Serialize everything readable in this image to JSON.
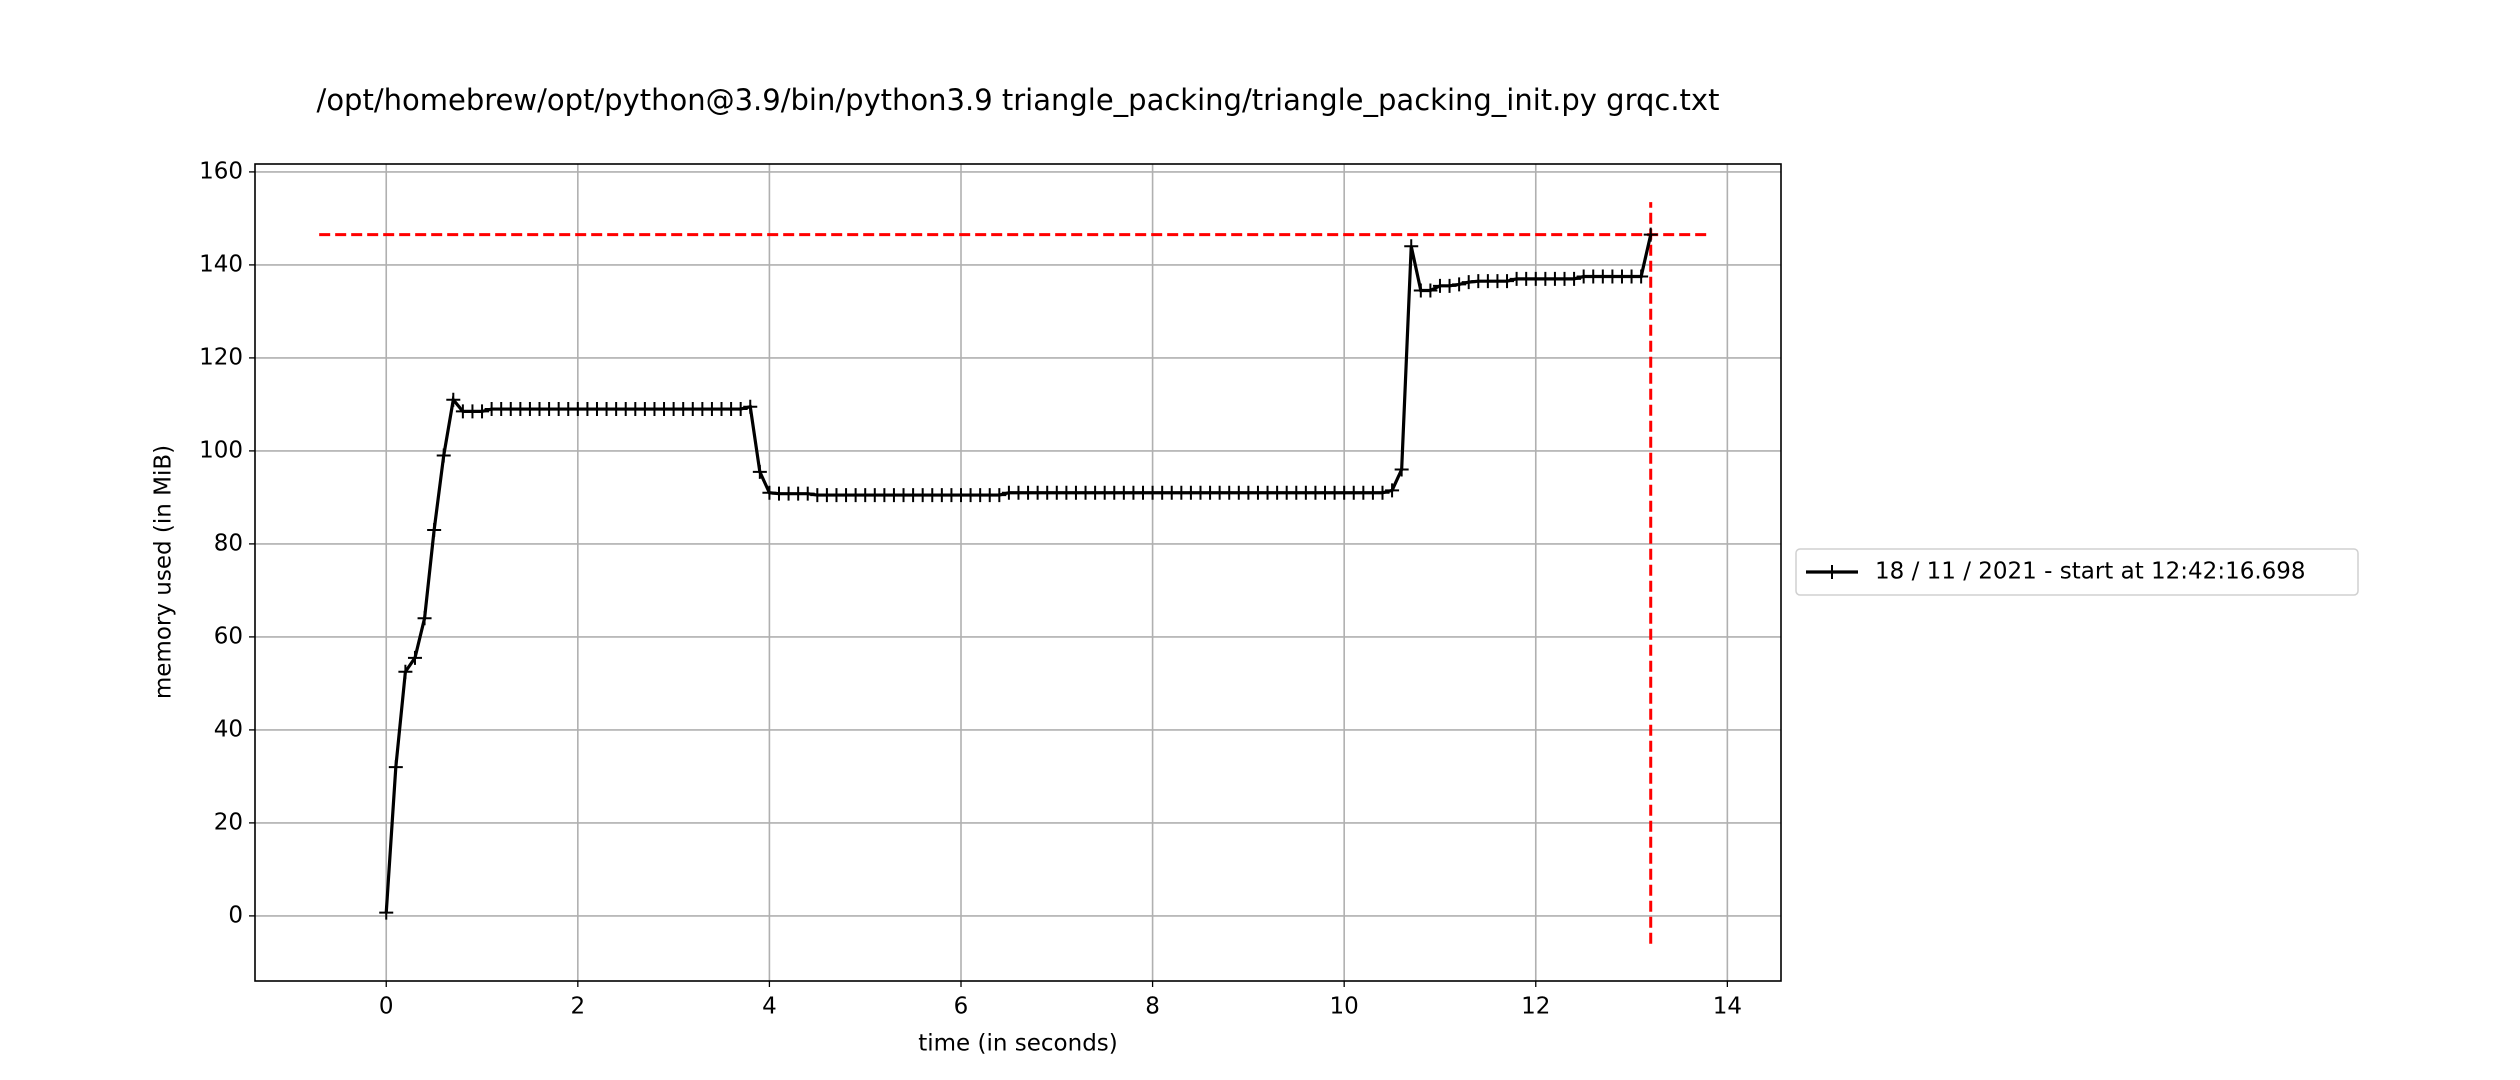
{
  "chart_data": {
    "type": "line",
    "title": "/opt/homebrew/opt/python@3.9/bin/python3.9 triangle_packing/triangle_packing_init.py grqc.txt",
    "xlabel": "time (in seconds)",
    "ylabel": "memory used (in MiB)",
    "x": [
      0.0,
      0.1,
      0.2,
      0.3,
      0.4,
      0.5,
      0.6,
      0.7,
      0.8,
      0.9,
      1.0,
      1.1,
      1.2,
      1.3,
      1.4,
      1.5,
      1.6,
      1.7,
      1.8,
      1.9,
      2.0,
      2.1,
      2.2,
      2.3,
      2.4,
      2.5,
      2.6,
      2.7,
      2.8,
      2.9,
      3.0,
      3.1,
      3.2,
      3.3,
      3.4,
      3.5,
      3.6,
      3.7,
      3.8,
      3.9,
      4.0,
      4.1,
      4.2,
      4.3,
      4.4,
      4.5,
      4.6,
      4.7,
      4.8,
      4.9,
      5.0,
      5.1,
      5.2,
      5.3,
      5.4,
      5.5,
      5.6,
      5.7,
      5.8,
      5.9,
      6.0,
      6.1,
      6.2,
      6.3,
      6.4,
      6.5,
      6.6,
      6.7,
      6.8,
      6.9,
      7.0,
      7.1,
      7.2,
      7.3,
      7.4,
      7.5,
      7.6,
      7.7,
      7.8,
      7.9,
      8.0,
      8.1,
      8.2,
      8.3,
      8.4,
      8.5,
      8.6,
      8.7,
      8.8,
      8.9,
      9.0,
      9.1,
      9.2,
      9.3,
      9.4,
      9.5,
      9.6,
      9.7,
      9.8,
      9.9,
      10.0,
      10.1,
      10.2,
      10.3,
      10.4,
      10.5,
      10.6,
      10.7,
      10.8,
      10.9,
      11.0,
      11.1,
      11.2,
      11.3,
      11.4,
      11.5,
      11.6,
      11.7,
      11.8,
      11.9,
      12.0,
      12.1,
      12.2,
      12.3,
      12.4,
      12.5,
      12.6,
      12.7,
      12.8,
      12.9,
      13.0,
      13.1,
      13.2
    ],
    "series": [
      {
        "name": "18 / 11 / 2021 - start at 12:42:16.698",
        "color": "#000000",
        "values": [
          0.7,
          32,
          52.5,
          55.5,
          64,
          83,
          99,
          111,
          108.5,
          108.5,
          108.5,
          109,
          109,
          109,
          109,
          109,
          109,
          109,
          109,
          109,
          109,
          109,
          109,
          109,
          109,
          109,
          109,
          109,
          109,
          109,
          109,
          109,
          109,
          109,
          109,
          109,
          109,
          109,
          109.5,
          95.5,
          91,
          90.8,
          90.8,
          90.8,
          90.8,
          90.5,
          90.5,
          90.5,
          90.5,
          90.5,
          90.5,
          90.5,
          90.5,
          90.5,
          90.5,
          90.5,
          90.5,
          90.5,
          90.5,
          90.5,
          90.5,
          90.5,
          90.5,
          90.5,
          90.5,
          91,
          91,
          91,
          91,
          91,
          91,
          91,
          91,
          91,
          91,
          91,
          91,
          91,
          91,
          91,
          91,
          91,
          91,
          91,
          91,
          91,
          91,
          91,
          91,
          91,
          91,
          91,
          91,
          91,
          91,
          91,
          91,
          91,
          91,
          91,
          91,
          91,
          91,
          91,
          91,
          91.5,
          96,
          144,
          134.5,
          134.5,
          135.5,
          135.5,
          135.8,
          136.3,
          136.5,
          136.5,
          136.5,
          136.5,
          137,
          137,
          137,
          137,
          137,
          137,
          137,
          137.5,
          137.5,
          137.5,
          137.5,
          137.5,
          137.5,
          137.5,
          146.5
        ]
      }
    ],
    "max_line": {
      "color": "#ff0000",
      "y": 146.5,
      "x_range": [
        -0.7,
        13.8
      ],
      "x": 13.2,
      "y_range": [
        -6,
        153.5
      ]
    },
    "xlim": [
      -1.37,
      14.56
    ],
    "ylim": [
      -14,
      161.7
    ],
    "xticks": [
      0,
      2,
      4,
      6,
      8,
      10,
      12,
      14
    ],
    "yticks": [
      0,
      20,
      40,
      60,
      80,
      100,
      120,
      140,
      160
    ],
    "grid": true,
    "legend": "outside-right"
  }
}
